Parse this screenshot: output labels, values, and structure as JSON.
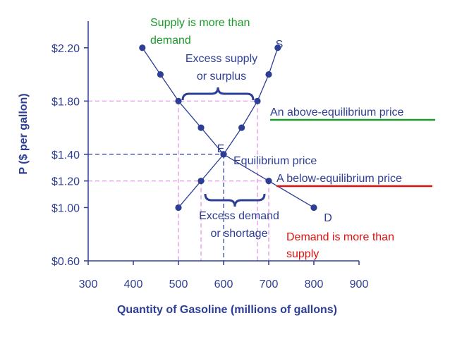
{
  "chart_data": {
    "type": "line",
    "title": "",
    "xlabel": "Quantity of Gasoline (millions of gallons)",
    "ylabel": "P ($ per gallon)",
    "xlim": [
      300,
      900
    ],
    "ylim": [
      0.6,
      2.4
    ],
    "x_ticks": [
      300,
      400,
      500,
      600,
      700,
      800,
      900
    ],
    "x_tick_labels": [
      "300",
      "400",
      "500",
      "600",
      "700",
      "800",
      "900"
    ],
    "y_ticks": [
      0.6,
      1.0,
      1.2,
      1.4,
      1.8,
      2.2
    ],
    "y_tick_labels": [
      "$0.60",
      "$1.00",
      "$1.20",
      "$1.40",
      "$1.80",
      "$2.20"
    ],
    "series": [
      {
        "name": "D",
        "label": "D",
        "points": [
          [
            420,
            2.2
          ],
          [
            460,
            2.0
          ],
          [
            500,
            1.8
          ],
          [
            550,
            1.6
          ],
          [
            600,
            1.4
          ],
          [
            700,
            1.2
          ],
          [
            800,
            1.0
          ]
        ]
      },
      {
        "name": "S",
        "label": "S",
        "points": [
          [
            500,
            1.0
          ],
          [
            550,
            1.2
          ],
          [
            600,
            1.4
          ],
          [
            640,
            1.6
          ],
          [
            675,
            1.8
          ],
          [
            700,
            2.0
          ],
          [
            720,
            2.2
          ]
        ]
      }
    ],
    "equilibrium": {
      "label": "E",
      "text": "Equilibrium price",
      "x": 600,
      "y": 1.4
    },
    "annotations": {
      "excess_supply": [
        "Excess supply",
        "or surplus"
      ],
      "excess_demand": [
        "Excess demand",
        "or shortage"
      ],
      "above_price": "An above-equilibrium price",
      "below_price": "A below-equilibrium price",
      "supply_more": [
        "Supply is more than",
        "demand"
      ],
      "demand_more": [
        "Demand is more than",
        "supply"
      ]
    },
    "colors": {
      "axis": "#2d3e95",
      "curve": "#2d3e95",
      "green": "#1a9a2a",
      "red": "#e01010",
      "guide_pink": "#e48ce8",
      "guide_navy": "#2d3e95"
    }
  }
}
